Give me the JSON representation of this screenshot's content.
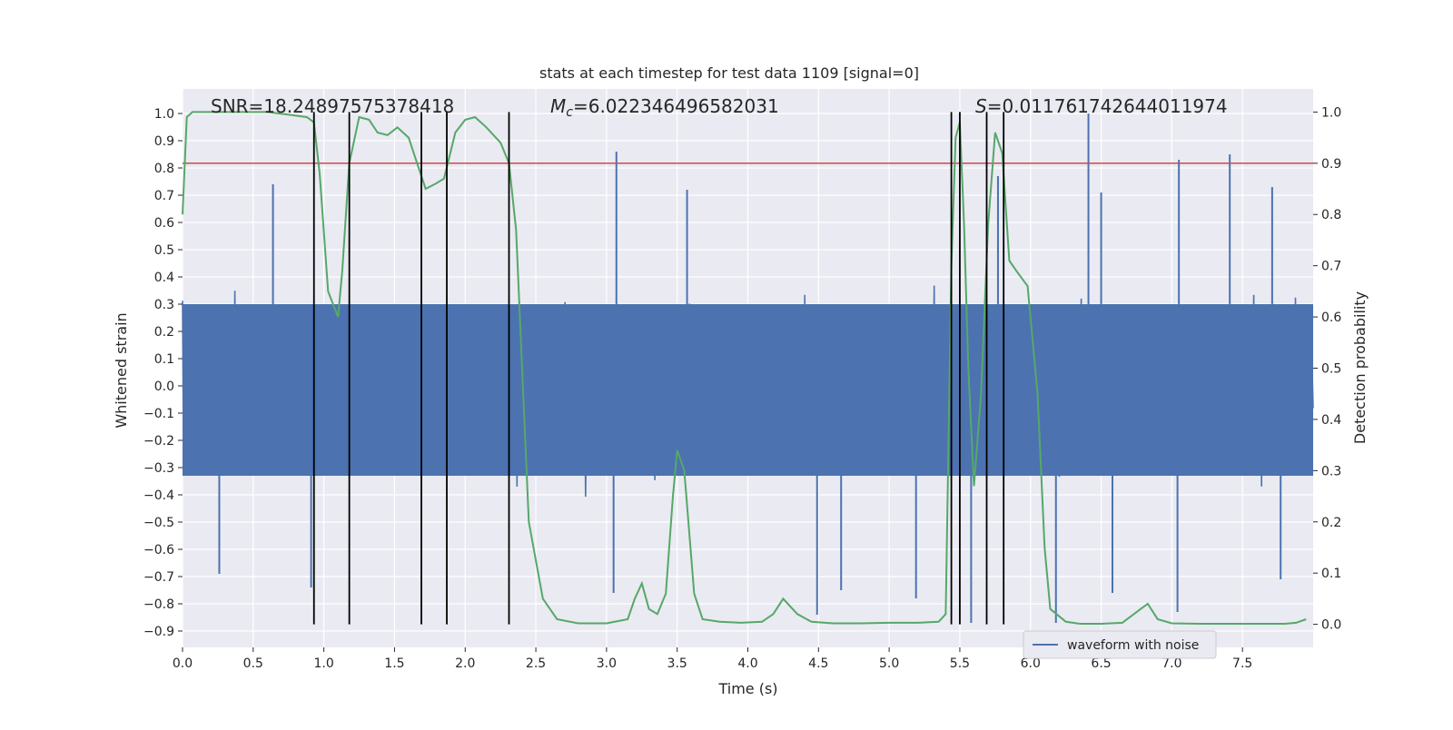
{
  "chart_data": {
    "type": "line",
    "title": "stats at each timestep for test data 1109 [signal=0]",
    "xlabel": "Time (s)",
    "ylabel_left": "Whitened strain",
    "ylabel_right": "Detection probability",
    "xlim": [
      0.0,
      8.0
    ],
    "ylim_left": [
      -0.96,
      1.09
    ],
    "ylim_right": [
      -0.045,
      1.045
    ],
    "x_ticks": [
      "0.0",
      "0.5",
      "1.0",
      "1.5",
      "2.0",
      "2.5",
      "3.0",
      "3.5",
      "4.0",
      "4.5",
      "5.0",
      "5.5",
      "6.0",
      "6.5",
      "7.0",
      "7.5"
    ],
    "y_ticks_left": [
      "-0.9",
      "-0.8",
      "-0.7",
      "-0.6",
      "-0.5",
      "-0.4",
      "-0.3",
      "-0.2",
      "-0.1",
      "0.0",
      "0.1",
      "0.2",
      "0.3",
      "0.4",
      "0.5",
      "0.6",
      "0.7",
      "0.8",
      "0.9",
      "1.0"
    ],
    "y_ticks_right": [
      "0.0",
      "0.1",
      "0.2",
      "0.3",
      "0.4",
      "0.5",
      "0.6",
      "0.7",
      "0.8",
      "0.9",
      "1.0"
    ],
    "annotations": {
      "snr": "SNR=18.24897575378418",
      "mc_symbol": "M",
      "mc_sub": "c",
      "mc_value": "=6.022346496582031",
      "s_symbol": "S",
      "s_value": "=0.011761742644011974"
    },
    "legend": {
      "entries": [
        "waveform with noise"
      ],
      "placement": "lower-right"
    },
    "grid": true,
    "colors": {
      "background": "#eaeaf2",
      "grid": "#ffffff",
      "waveform": "#4c72b0",
      "probability": "#55a868",
      "threshold": "#c44e52",
      "markers": "#000000"
    },
    "threshold_probability": 0.9,
    "vertical_markers_s": [
      0.93,
      1.18,
      1.69,
      1.87,
      2.31,
      5.44,
      5.5,
      5.69,
      5.81
    ],
    "waveform_envelope": {
      "description": "noise strain series",
      "typical_max": 0.5,
      "typical_min": -0.45,
      "peaks": [
        {
          "x": 6.41,
          "y": 1.0
        },
        {
          "x": 3.07,
          "y": 0.86
        },
        {
          "x": 7.41,
          "y": 0.85
        },
        {
          "x": 7.05,
          "y": 0.83
        },
        {
          "x": 5.77,
          "y": 0.77
        },
        {
          "x": 0.64,
          "y": 0.74
        },
        {
          "x": 3.57,
          "y": 0.72
        },
        {
          "x": 7.71,
          "y": 0.73
        },
        {
          "x": 6.5,
          "y": 0.71
        },
        {
          "x": 4.49,
          "y": -0.84
        },
        {
          "x": 7.04,
          "y": -0.83
        },
        {
          "x": 5.58,
          "y": -0.87
        },
        {
          "x": 6.18,
          "y": -0.87
        },
        {
          "x": 0.91,
          "y": -0.74
        },
        {
          "x": 3.05,
          "y": -0.76
        },
        {
          "x": 6.58,
          "y": -0.76
        },
        {
          "x": 7.77,
          "y": -0.71
        },
        {
          "x": 0.26,
          "y": -0.69
        },
        {
          "x": 4.66,
          "y": -0.75
        },
        {
          "x": 5.19,
          "y": -0.78
        }
      ]
    },
    "series": [
      {
        "name": "waveform with noise",
        "axis": "left",
        "type": "noise"
      },
      {
        "axis": "right",
        "x": [
          0.0,
          0.03,
          0.07,
          0.12,
          0.2,
          0.4,
          0.6,
          0.75,
          0.88,
          0.93,
          0.97,
          1.03,
          1.1,
          1.13,
          1.18,
          1.25,
          1.32,
          1.38,
          1.45,
          1.52,
          1.6,
          1.66,
          1.72,
          1.79,
          1.85,
          1.93,
          2.0,
          2.07,
          2.15,
          2.25,
          2.31,
          2.36,
          2.45,
          2.55,
          2.65,
          2.8,
          3.0,
          3.15,
          3.2,
          3.25,
          3.3,
          3.36,
          3.42,
          3.47,
          3.5,
          3.55,
          3.62,
          3.68,
          3.8,
          3.95,
          4.1,
          4.18,
          4.25,
          4.35,
          4.45,
          4.6,
          4.8,
          5.0,
          5.2,
          5.35,
          5.4,
          5.44,
          5.47,
          5.5,
          5.53,
          5.56,
          5.6,
          5.65,
          5.7,
          5.75,
          5.8,
          5.85,
          5.9,
          5.98,
          6.05,
          6.1,
          6.14,
          6.25,
          6.35,
          6.5,
          6.65,
          6.78,
          6.83,
          6.9,
          7.0,
          7.2,
          7.5,
          7.8,
          7.88,
          7.95
        ],
        "y": [
          0.8,
          0.99,
          1.0,
          1.0,
          1.0,
          1.0,
          1.0,
          0.995,
          0.99,
          0.98,
          0.88,
          0.65,
          0.6,
          0.69,
          0.9,
          0.99,
          0.985,
          0.96,
          0.955,
          0.97,
          0.95,
          0.9,
          0.85,
          0.86,
          0.87,
          0.96,
          0.985,
          0.99,
          0.97,
          0.94,
          0.9,
          0.77,
          0.2,
          0.05,
          0.01,
          0.002,
          0.002,
          0.01,
          0.05,
          0.08,
          0.03,
          0.02,
          0.06,
          0.25,
          0.34,
          0.3,
          0.06,
          0.01,
          0.005,
          0.003,
          0.005,
          0.02,
          0.05,
          0.02,
          0.005,
          0.002,
          0.002,
          0.003,
          0.003,
          0.005,
          0.02,
          0.7,
          0.95,
          0.98,
          0.78,
          0.5,
          0.27,
          0.45,
          0.78,
          0.96,
          0.92,
          0.71,
          0.69,
          0.66,
          0.45,
          0.15,
          0.03,
          0.005,
          0.001,
          0.001,
          0.003,
          0.03,
          0.04,
          0.01,
          0.002,
          0.001,
          0.001,
          0.001,
          0.003,
          0.01
        ]
      }
    ]
  }
}
